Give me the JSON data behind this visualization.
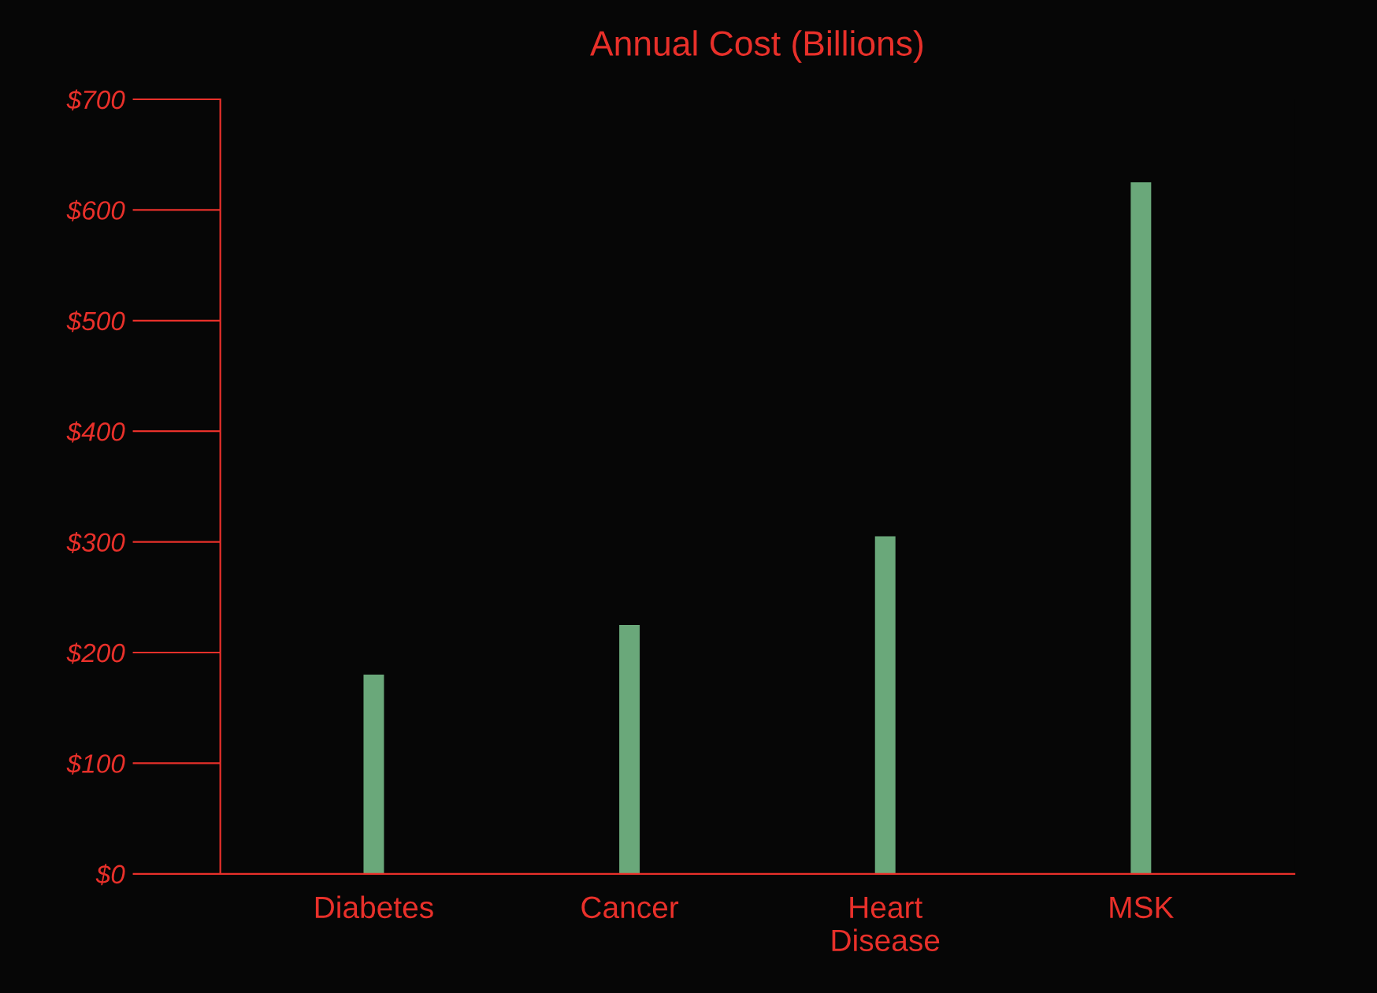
{
  "chart_data": {
    "type": "bar",
    "title": "Annual Cost (Billions)",
    "categories": [
      "Diabetes",
      "Cancer",
      "Heart\nDisease",
      "MSK"
    ],
    "values": [
      180,
      225,
      305,
      625
    ],
    "color": "#6aa87a",
    "ylim": [
      0,
      700
    ],
    "yticks": [
      {
        "value": 0,
        "label": "$0"
      },
      {
        "value": 100,
        "label": "$100"
      },
      {
        "value": 200,
        "label": "$200"
      },
      {
        "value": 300,
        "label": "$300"
      },
      {
        "value": 400,
        "label": "$400"
      },
      {
        "value": 500,
        "label": "$500"
      },
      {
        "value": 600,
        "label": "$600"
      },
      {
        "value": 700,
        "label": "$700"
      }
    ],
    "grid": false
  }
}
